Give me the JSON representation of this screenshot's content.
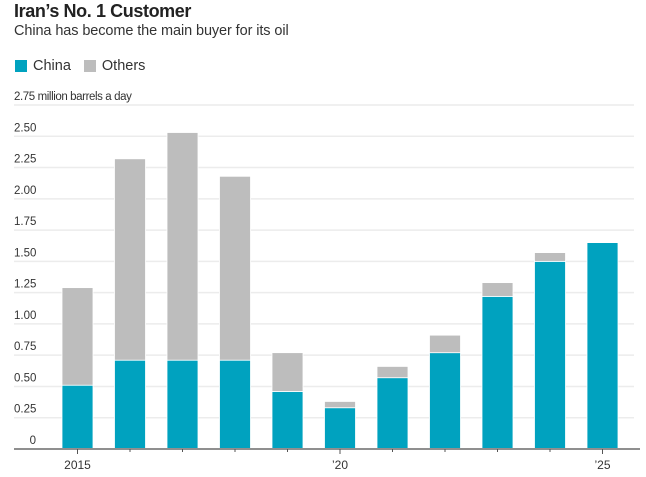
{
  "header": {
    "title": "Iran’s No. 1 Customer",
    "subtitle": "China has become the main buyer for its oil"
  },
  "legend": [
    {
      "label": "China",
      "color": "#00A2BF"
    },
    {
      "label": "Others",
      "color": "#BDBDBD"
    }
  ],
  "chart_data": {
    "type": "bar",
    "stacked": true,
    "title": "Iran’s No. 1 Customer",
    "subtitle": "China has become the main buyer for its oil",
    "xlabel": "",
    "ylabel": "million barrels a day",
    "unit_label": "2.75 million barrels a day",
    "ylim": [
      0,
      2.75
    ],
    "yticks": [
      0,
      0.25,
      0.5,
      0.75,
      1.0,
      1.25,
      1.5,
      1.75,
      2.0,
      2.25,
      2.5,
      2.75
    ],
    "ytick_labels": [
      "0",
      "0.25",
      "0.50",
      "0.75",
      "1.00",
      "1.25",
      "1.50",
      "1.75",
      "2.00",
      "2.25",
      "2.50",
      "2.75"
    ],
    "categories": [
      "2015",
      "2016",
      "2017",
      "2018",
      "2019",
      "2020",
      "2021",
      "2022",
      "2023",
      "2024",
      "2025"
    ],
    "xtick_labels": {
      "2015": "2015",
      "2020": "’20",
      "2025": "’25"
    },
    "grid": true,
    "legend_position": "top-left",
    "series": [
      {
        "name": "China",
        "color": "#00A2BF",
        "values": [
          0.51,
          0.71,
          0.71,
          0.71,
          0.46,
          0.33,
          0.57,
          0.77,
          1.22,
          1.5,
          1.65
        ]
      },
      {
        "name": "Others",
        "color": "#BDBDBD",
        "values": [
          0.78,
          1.61,
          1.82,
          1.47,
          0.31,
          0.05,
          0.09,
          0.14,
          0.11,
          0.07,
          0.0
        ]
      }
    ],
    "totals": [
      1.29,
      2.32,
      2.53,
      2.18,
      0.77,
      0.38,
      0.66,
      0.91,
      1.33,
      1.57,
      1.65
    ]
  }
}
